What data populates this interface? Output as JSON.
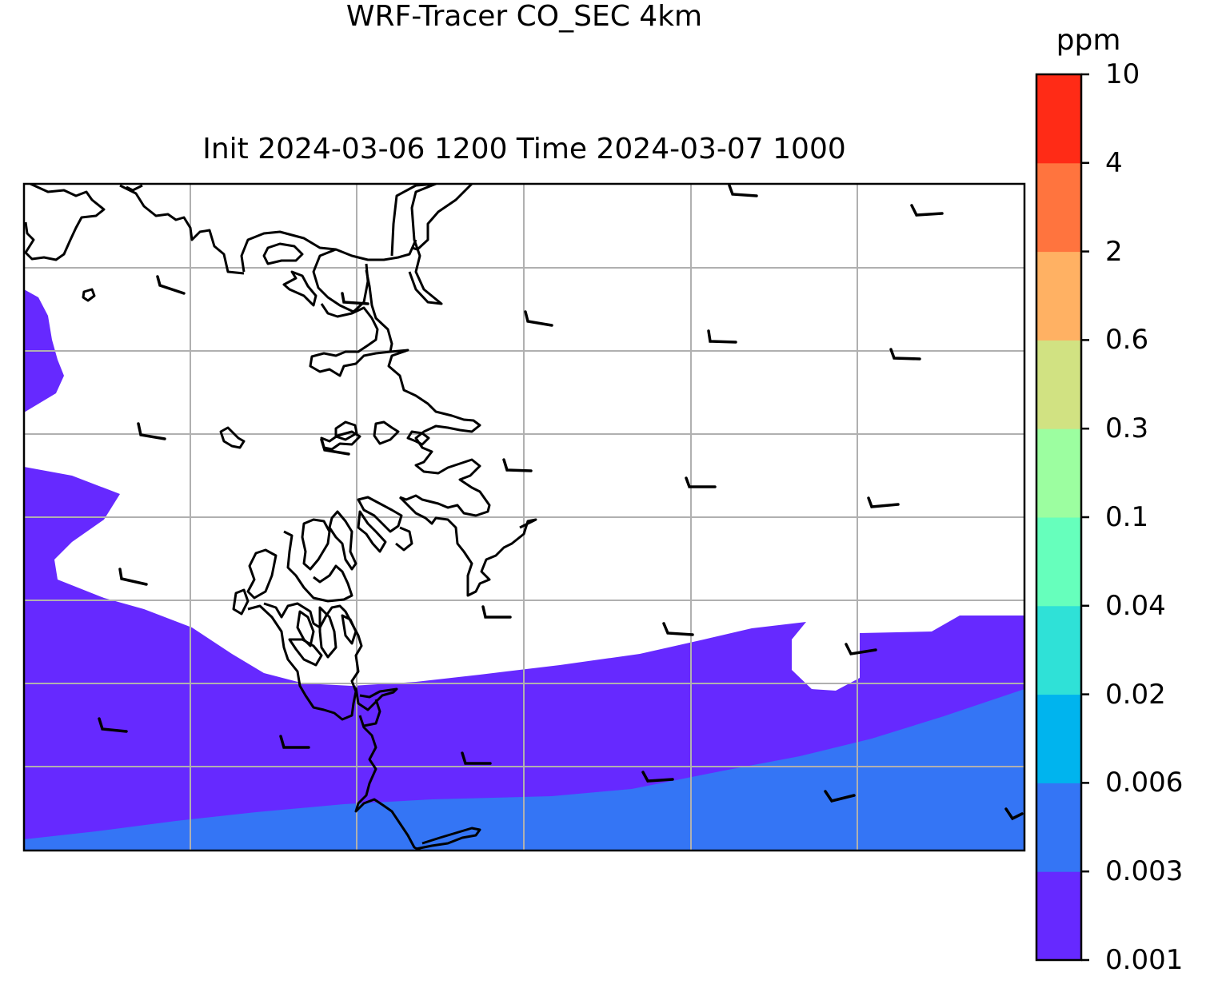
{
  "title": {
    "line1": "WRF-Tracer CO_SEC 4km",
    "line2": "Init 2024-03-06 1200 Time 2024-03-07 1000"
  },
  "colorbar": {
    "unit": "ppm",
    "ticks": [
      "0.001",
      "0.003",
      "0.006",
      "0.02",
      "0.04",
      "0.1",
      "0.3",
      "0.6",
      "2",
      "4",
      "10"
    ],
    "colors": [
      "#6629ff",
      "#3475f5",
      "#00b4ee",
      "#2fe1d7",
      "#66ffbc",
      "#9cfea0",
      "#d1e282",
      "#ffb163",
      "#ff743e",
      "#ff2b16"
    ]
  },
  "map": {
    "background": "#ffffff",
    "coastline_color": "#000000",
    "gridline_color": "#b0b0b0",
    "wind_barb_color": "#000000",
    "shaded_levels": [
      "0.001-0.003",
      "0.003-0.006"
    ]
  }
}
